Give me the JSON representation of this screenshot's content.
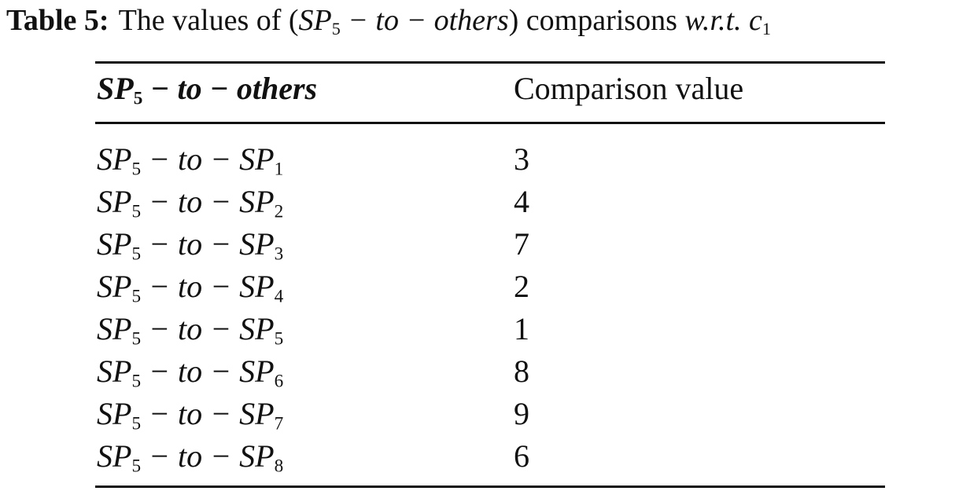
{
  "caption": {
    "label": "Table 5:",
    "text": [
      "The values of (",
      "SP5 − to − others",
      ") comparisons ",
      "w.r.t. c1"
    ]
  },
  "table": {
    "header": [
      "SP5 − to − others",
      "Comparison value"
    ],
    "rows": [
      [
        "SP5 − to − SP1",
        3
      ],
      [
        "SP5 − to − SP2",
        4
      ],
      [
        "SP5 − to − SP3",
        7
      ],
      [
        "SP5 − to − SP4",
        2
      ],
      [
        "SP5 − to − SP5",
        1
      ],
      [
        "SP5 − to − SP6",
        8
      ],
      [
        "SP5 − to − SP7",
        9
      ],
      [
        "SP5 − to − SP8",
        6
      ]
    ]
  }
}
